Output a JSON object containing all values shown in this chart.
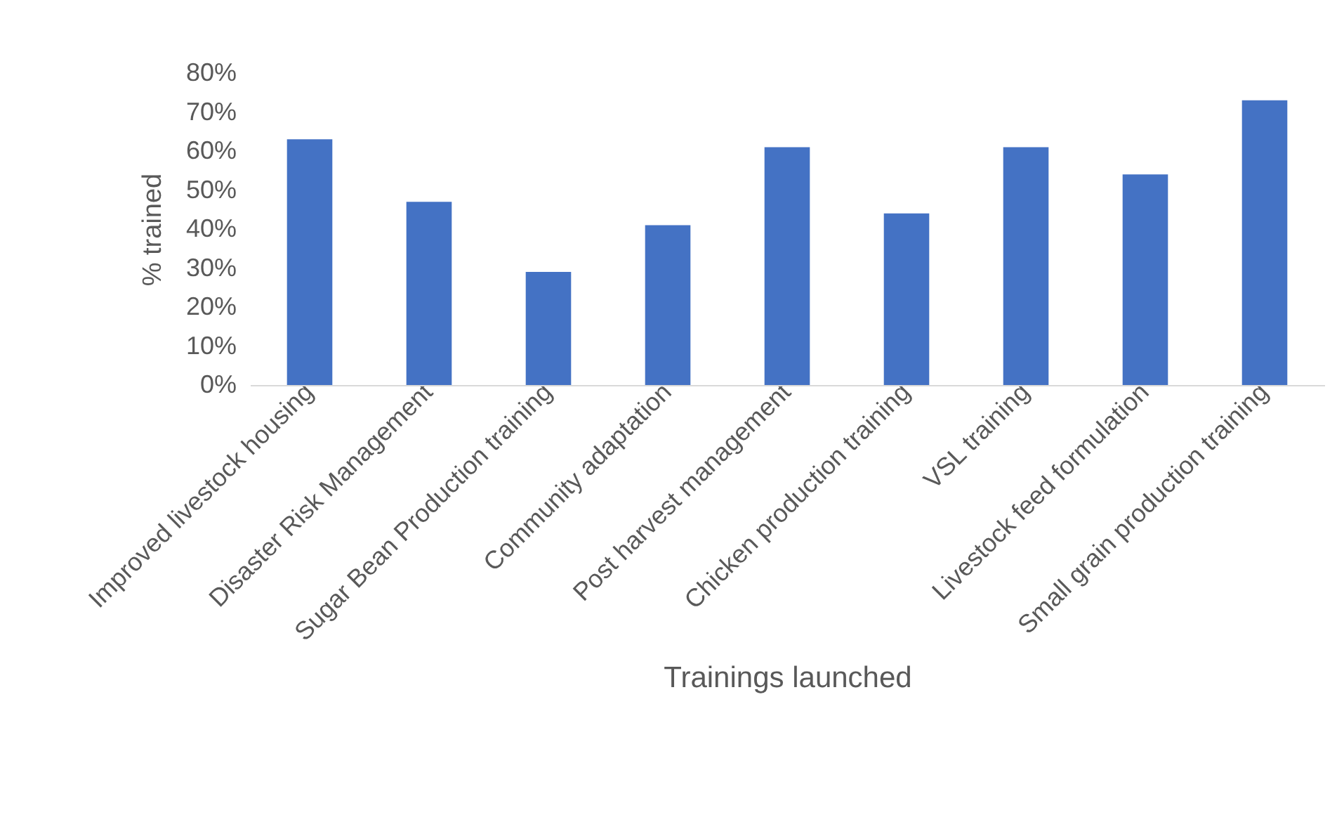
{
  "chart_data": {
    "type": "bar",
    "xlabel": "Trainings launched",
    "ylabel": "% trained",
    "categories": [
      "Improved livestock housing",
      "Disaster Risk Management",
      "Sugar Bean Production training",
      "Community adaptation",
      "Post harvest management",
      "Chicken production training",
      "VSL training",
      "Livestock feed formulation",
      "Small grain production training"
    ],
    "values": [
      63,
      47,
      29,
      41,
      61,
      44,
      61,
      54,
      73
    ],
    "color": "#4472c4",
    "ylim": [
      0,
      80
    ],
    "yticks": [
      {
        "value": 0,
        "label": "0%"
      },
      {
        "value": 10,
        "label": "10%"
      },
      {
        "value": 20,
        "label": "20%"
      },
      {
        "value": 30,
        "label": "30%"
      },
      {
        "value": 40,
        "label": "40%"
      },
      {
        "value": 50,
        "label": "50%"
      },
      {
        "value": 60,
        "label": "60%"
      },
      {
        "value": 70,
        "label": "70%"
      },
      {
        "value": 80,
        "label": "80%"
      }
    ],
    "grid": false
  }
}
